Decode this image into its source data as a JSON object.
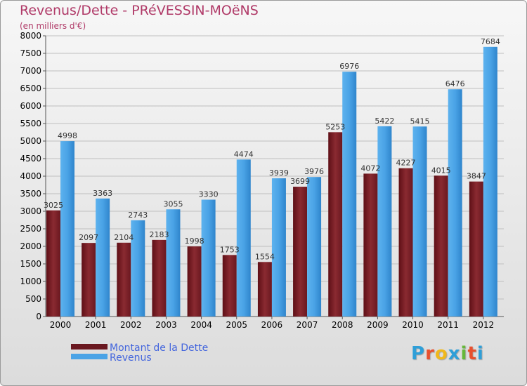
{
  "title": "Revenus/Dette - PRéVESSIN-MOëNS",
  "subtitle": "(en milliers d'€)",
  "logo": {
    "text": "Proxiti",
    "letter_colors": [
      "#2f9fd8",
      "#e8502e",
      "#f0b81c",
      "#2f9fd8",
      "#66b83a",
      "#e8502e",
      "#2f9fd8"
    ]
  },
  "colors": {
    "debt": "#7b1d24",
    "debt_light": "#8c2a31",
    "revenue": "#4aa3e6",
    "revenue_dark": "#2f85cc",
    "grid": "#bfbfbf",
    "legend_text": "#4466dd",
    "title": "#b03a68"
  },
  "chart_data": {
    "type": "bar",
    "title": "Revenus/Dette - PRéVESSIN-MOëNS",
    "ylabel": "(en milliers d'€)",
    "xlabel": "",
    "ylim": [
      0,
      8000
    ],
    "yticks": [
      0,
      500,
      1000,
      1500,
      2000,
      2500,
      3000,
      3500,
      4000,
      4500,
      5000,
      5500,
      6000,
      6500,
      7000,
      7500,
      8000
    ],
    "grid": true,
    "legend_position": "bottom-left",
    "categories": [
      "2000",
      "2001",
      "2002",
      "2003",
      "2004",
      "2005",
      "2006",
      "2007",
      "2008",
      "2009",
      "2010",
      "2011",
      "2012"
    ],
    "series": [
      {
        "name": "Montant de la Dette",
        "values": [
          3025,
          2097,
          2104,
          2183,
          1998,
          1753,
          1554,
          3699,
          5253,
          4072,
          4227,
          4015,
          3847
        ]
      },
      {
        "name": "Revenus",
        "values": [
          4998,
          3363,
          2743,
          3055,
          3330,
          4474,
          3939,
          3976,
          6976,
          5422,
          5415,
          6476,
          7684
        ]
      }
    ]
  }
}
